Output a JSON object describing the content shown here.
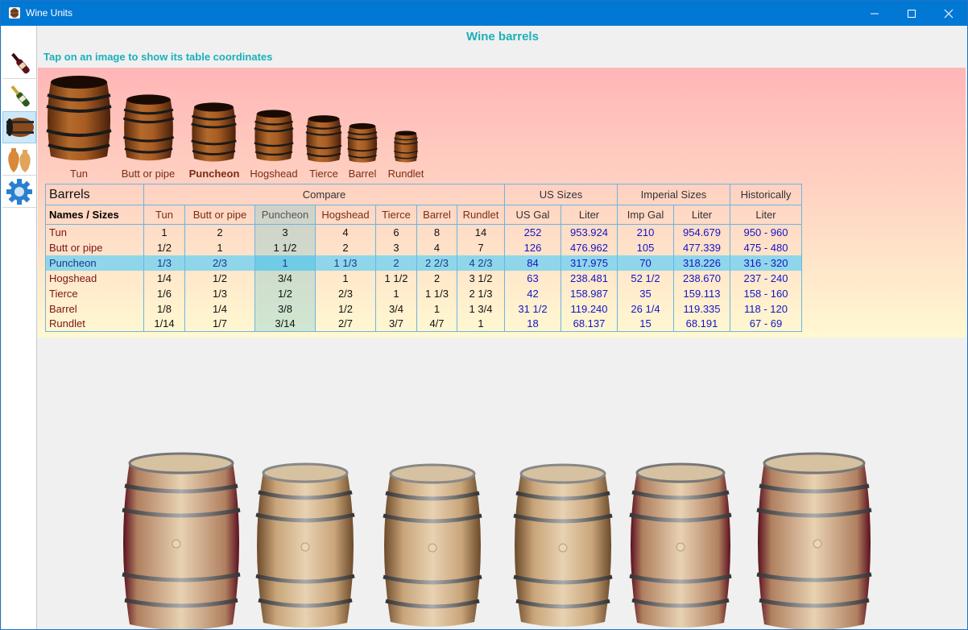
{
  "window": {
    "title": "Wine Units"
  },
  "colors": {
    "titlebar": "#0078d4",
    "accent": "#1bb0b8",
    "name_text": "#7a1414",
    "measure_text": "#1414c8",
    "highlight_row": "#8fd6ea"
  },
  "sidebar": {
    "items": [
      {
        "icon": "wine-bottle-icon"
      },
      {
        "icon": "champagne-bottle-icon"
      },
      {
        "icon": "barrel-icon",
        "selected": true
      },
      {
        "icon": "amphora-icon"
      },
      {
        "icon": "gear-icon"
      }
    ]
  },
  "header": {
    "title": "Wine barrels",
    "hint": "Tap on an image to show its table coordinates"
  },
  "barrels": [
    "Tun",
    "Butt or pipe",
    "Puncheon",
    "Hogshead",
    "Tierce",
    "Barrel",
    "Rundlet"
  ],
  "table": {
    "corner_title": "Barrels",
    "names_label": "Names / Sizes",
    "groups": {
      "compare": "Compare",
      "us": "US Sizes",
      "imperial": "Imperial Sizes",
      "historic": "Historically"
    },
    "columns": {
      "compare": [
        "Tun",
        "Butt or pipe",
        "Puncheon",
        "Hogshead",
        "Tierce",
        "Barrel",
        "Rundlet"
      ],
      "us": [
        "US Gal",
        "Liter"
      ],
      "imperial": [
        "Imp Gal",
        "Liter"
      ],
      "historic": [
        "Liter"
      ]
    },
    "highlight_row_index": 2,
    "highlight_col_index": 2,
    "rows": [
      {
        "name": "Tun",
        "compare": [
          "1",
          "2",
          "3",
          "4",
          "6",
          "8",
          "14"
        ],
        "us_gal": "252",
        "us_liter": "953.924",
        "imp_gal": "210",
        "imp_liter": "954.679",
        "historic": "950 - 960"
      },
      {
        "name": "Butt or pipe",
        "compare": [
          "1/2",
          "1",
          "1 1/2",
          "2",
          "3",
          "4",
          "7"
        ],
        "us_gal": "126",
        "us_liter": "476.962",
        "imp_gal": "105",
        "imp_liter": "477.339",
        "historic": "475 - 480"
      },
      {
        "name": "Puncheon",
        "compare": [
          "1/3",
          "2/3",
          "1",
          "1 1/3",
          "2",
          "2 2/3",
          "4 2/3"
        ],
        "us_gal": "84",
        "us_liter": "317.975",
        "imp_gal": "70",
        "imp_liter": "318.226",
        "historic": "316 - 320"
      },
      {
        "name": "Hogshead",
        "compare": [
          "1/4",
          "1/2",
          "3/4",
          "1",
          "1 1/2",
          "2",
          "3 1/2"
        ],
        "us_gal": "63",
        "us_liter": "238.481",
        "imp_gal": "52 1/2",
        "imp_liter": "238.670",
        "historic": "237 - 240"
      },
      {
        "name": "Tierce",
        "compare": [
          "1/6",
          "1/3",
          "1/2",
          "2/3",
          "1",
          "1 1/3",
          "2 1/3"
        ],
        "us_gal": "42",
        "us_liter": "158.987",
        "imp_gal": "35",
        "imp_liter": "159.113",
        "historic": "158 - 160"
      },
      {
        "name": "Barrel",
        "compare": [
          "1/8",
          "1/4",
          "3/8",
          "1/2",
          "3/4",
          "1",
          "1 3/4"
        ],
        "us_gal": "31 1/2",
        "us_liter": "119.240",
        "imp_gal": "26 1/4",
        "imp_liter": "119.335",
        "historic": "118 - 120"
      },
      {
        "name": "Rundlet",
        "compare": [
          "1/14",
          "1/7",
          "3/14",
          "2/7",
          "3/7",
          "4/7",
          "1"
        ],
        "us_gal": "18",
        "us_liter": "68.137",
        "imp_gal": "15",
        "imp_liter": "68.191",
        "historic": "67 - 69"
      }
    ]
  }
}
